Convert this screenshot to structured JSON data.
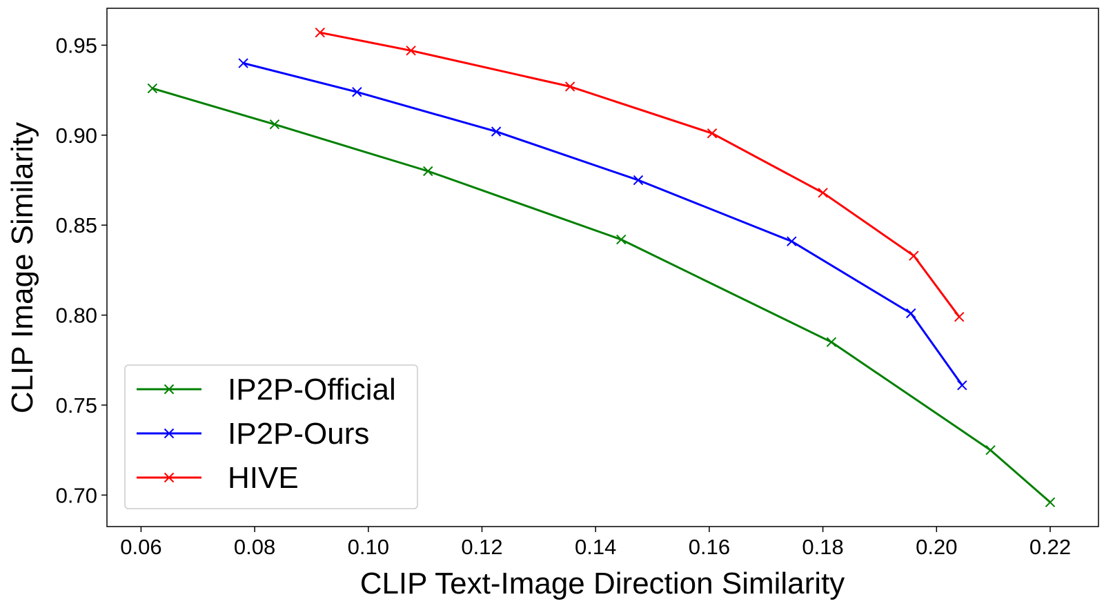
{
  "chart_data": {
    "type": "line",
    "xlabel": "CLIP Text-Image Direction Similarity",
    "ylabel": "CLIP Image Similarity",
    "xlim": [
      0.054,
      0.2285
    ],
    "ylim": [
      0.6825,
      0.9705
    ],
    "xticks": [
      0.06,
      0.08,
      0.1,
      0.12,
      0.14,
      0.16,
      0.18,
      0.2,
      0.22
    ],
    "xtick_labels": [
      "0.06",
      "0.08",
      "0.10",
      "0.12",
      "0.14",
      "0.16",
      "0.18",
      "0.20",
      "0.22"
    ],
    "yticks": [
      0.7,
      0.75,
      0.8,
      0.85,
      0.9,
      0.95
    ],
    "ytick_labels": [
      "0.70",
      "0.75",
      "0.80",
      "0.85",
      "0.90",
      "0.95"
    ],
    "grid": false,
    "legend_position": "lower-left",
    "marker": "x",
    "series": [
      {
        "name": "IP2P-Official",
        "color": "#008000",
        "x": [
          0.062,
          0.0835,
          0.1105,
          0.1445,
          0.1815,
          0.2095,
          0.22
        ],
        "y": [
          0.926,
          0.906,
          0.88,
          0.842,
          0.785,
          0.725,
          0.696
        ]
      },
      {
        "name": "IP2P-Ours",
        "color": "#0000ff",
        "x": [
          0.078,
          0.098,
          0.1225,
          0.1475,
          0.1745,
          0.1955,
          0.2045
        ],
        "y": [
          0.94,
          0.924,
          0.902,
          0.875,
          0.841,
          0.801,
          0.761
        ]
      },
      {
        "name": "HIVE",
        "color": "#ff0000",
        "x": [
          0.0915,
          0.1075,
          0.1355,
          0.1605,
          0.18,
          0.196,
          0.204
        ],
        "y": [
          0.957,
          0.947,
          0.927,
          0.901,
          0.868,
          0.833,
          0.799
        ]
      }
    ]
  }
}
